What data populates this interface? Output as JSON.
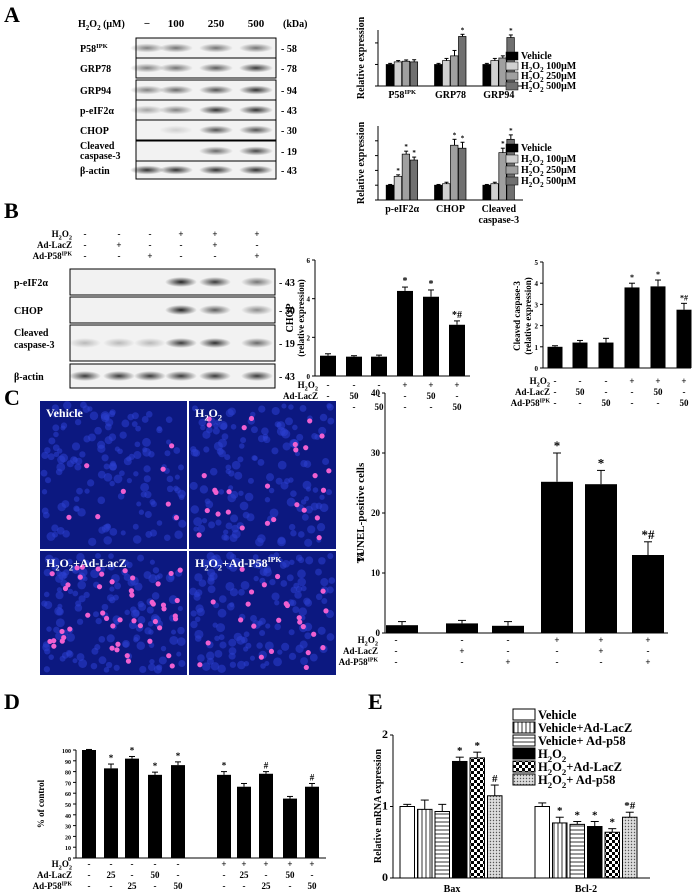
{
  "panel_letters": [
    "A",
    "B",
    "C",
    "D",
    "E"
  ],
  "panelA": {
    "conc_label": "H2O2 (μM)",
    "kda_label": "(kDa)",
    "conc_values": [
      "−",
      "100",
      "250",
      "500"
    ],
    "rows": [
      {
        "name": "P58IPK",
        "kda": "58"
      },
      {
        "name": "GRP78",
        "kda": "78"
      },
      {
        "name": "GRP94",
        "kda": "94"
      },
      {
        "name": "p-eIF2α",
        "kda": "43"
      },
      {
        "name": "CHOP",
        "kda": "30"
      },
      {
        "name": "Cleaved caspase-3",
        "kda": "19"
      },
      {
        "name": "β-actin",
        "kda": "43"
      }
    ],
    "legend": [
      "Vehicle",
      "H2O2 100μM",
      "H2O2 250μM",
      "H2O2 500μM"
    ],
    "legend_colors": [
      "#000000",
      "#d0d0d0",
      "#a0a0a0",
      "#707070"
    ]
  },
  "panelB": {
    "blot_conditions": [
      {
        "label": "H2O2",
        "values": [
          "-",
          "-",
          "-",
          "+",
          "+",
          "+"
        ]
      },
      {
        "label": "Ad-LacZ",
        "values": [
          "-",
          "+",
          "-",
          "-",
          "+",
          "-"
        ]
      },
      {
        "label": "Ad-P58IPK",
        "values": [
          "-",
          "-",
          "+",
          "-",
          "-",
          "+"
        ]
      }
    ],
    "rows": [
      {
        "name": "p-eIF2α",
        "kda": "43"
      },
      {
        "name": "CHOP",
        "kda": "30"
      },
      {
        "name": "Cleaved caspase-3",
        "kda": "19"
      },
      {
        "name": "β-actin",
        "kda": "43"
      }
    ],
    "chart_conditions": [
      {
        "label": "H2O2",
        "values": [
          "-",
          "-",
          "-",
          "+",
          "+",
          "+"
        ]
      },
      {
        "label": "Ad-LacZ",
        "values": [
          "-",
          "50",
          "-",
          "-",
          "50",
          "-"
        ]
      },
      {
        "label": "Ad-P58IPK",
        "values": [
          "-",
          "-",
          "50",
          "-",
          "-",
          "50"
        ]
      }
    ]
  },
  "panelC": {
    "images": [
      "Vehicle",
      "H2O2",
      "H2O2+Ad-LacZ",
      "H2O2+Ad-P58IPK"
    ],
    "conditions": [
      {
        "label": "H2O2",
        "values": [
          "-",
          "-",
          "-",
          "+",
          "+",
          "+"
        ]
      },
      {
        "label": "Ad-LacZ",
        "values": [
          "-",
          "+",
          "-",
          "-",
          "+",
          "-"
        ]
      },
      {
        "label": "Ad-P58IPK",
        "values": [
          "-",
          "-",
          "+",
          "-",
          "-",
          "+"
        ]
      }
    ]
  },
  "panelD": {
    "conditions": [
      {
        "label": "H2O2",
        "values": [
          "-",
          "-",
          "-",
          "-",
          "-",
          "+",
          "+",
          "+",
          "+",
          "+"
        ]
      },
      {
        "label": "Ad-LacZ",
        "values": [
          "-",
          "25",
          "-",
          "50",
          "-",
          "-",
          "25",
          "-",
          "50",
          "-"
        ]
      },
      {
        "label": "Ad-P58IPK",
        "values": [
          "-",
          "-",
          "25",
          "-",
          "50",
          "-",
          "-",
          "25",
          "-",
          "50"
        ]
      }
    ]
  },
  "panelE": {
    "legend": [
      "Vehicle",
      "Vehicle+Ad-LacZ",
      "Vehicle+ Ad-p58",
      "H2O2",
      "H2O2+Ad-LacZ",
      "H2O2+ Ad-p58"
    ]
  },
  "chart_data": [
    {
      "id": "A-top",
      "type": "bar",
      "ylabel": "Relative expression",
      "categories": [
        "P58IPK",
        "GRP78",
        "GRP94"
      ],
      "ylim": [
        0,
        2.6
      ],
      "series": [
        {
          "name": "Vehicle",
          "values": [
            1.0,
            1.0,
            1.0
          ],
          "errors": [
            0.05,
            0.05,
            0.05
          ]
        },
        {
          "name": "H2O2 100μM",
          "values": [
            1.12,
            1.18,
            1.18
          ],
          "errors": [
            0.06,
            0.1,
            0.1
          ]
        },
        {
          "name": "H2O2 250μM",
          "values": [
            1.15,
            1.4,
            1.3
          ],
          "errors": [
            0.06,
            0.25,
            0.1
          ]
        },
        {
          "name": "H2O2 500μM",
          "values": [
            1.12,
            2.3,
            2.25
          ],
          "errors": [
            0.1,
            0.1,
            0.12
          ]
        }
      ],
      "annotations": [
        {
          "cat": 1,
          "series": 3,
          "text": "*"
        },
        {
          "cat": 2,
          "series": 3,
          "text": "*"
        }
      ]
    },
    {
      "id": "A-bottom",
      "type": "bar",
      "ylabel": "Relative expression",
      "categories": [
        "p-eIF2α",
        "CHOP",
        "Cleaved caspase-3"
      ],
      "ylim": [
        0,
        5
      ],
      "series": [
        {
          "name": "Vehicle",
          "values": [
            1.0,
            1.0,
            1.0
          ],
          "errors": [
            0.05,
            0.05,
            0.05
          ]
        },
        {
          "name": "H2O2 100μM",
          "values": [
            1.6,
            1.1,
            1.1
          ],
          "errors": [
            0.1,
            0.1,
            0.1
          ]
        },
        {
          "name": "H2O2 250μM",
          "values": [
            3.1,
            3.7,
            3.2
          ],
          "errors": [
            0.2,
            0.4,
            0.3
          ]
        },
        {
          "name": "H2O2 500μM",
          "values": [
            2.7,
            3.5,
            4.1
          ],
          "errors": [
            0.2,
            0.4,
            0.3
          ]
        }
      ],
      "annotations": [
        {
          "cat": 0,
          "series": 1,
          "text": "*"
        },
        {
          "cat": 0,
          "series": 2,
          "text": "*"
        },
        {
          "cat": 0,
          "series": 3,
          "text": "*"
        },
        {
          "cat": 1,
          "series": 2,
          "text": "*"
        },
        {
          "cat": 1,
          "series": 3,
          "text": "*"
        },
        {
          "cat": 2,
          "series": 2,
          "text": "*"
        },
        {
          "cat": 2,
          "series": 3,
          "text": "*"
        }
      ]
    },
    {
      "id": "B-chop",
      "type": "bar",
      "ylabel": "CHOP (relative expression)",
      "ylim": [
        0,
        6
      ],
      "yticks": [
        0,
        2,
        4,
        6
      ],
      "values": [
        1.05,
        1.0,
        1.0,
        4.4,
        4.1,
        2.65
      ],
      "errors": [
        0.1,
        0.05,
        0.08,
        0.2,
        0.35,
        0.2
      ],
      "annotations": [
        "",
        "",
        "",
        "*",
        "*",
        "*#"
      ]
    },
    {
      "id": "B-casp",
      "type": "bar",
      "ylabel": "Cleaved caspase-3 (relative expression)",
      "ylim": [
        0,
        5
      ],
      "yticks": [
        0,
        1,
        2,
        3,
        4,
        5
      ],
      "values": [
        1.0,
        1.2,
        1.2,
        3.8,
        3.85,
        2.75
      ],
      "errors": [
        0.05,
        0.1,
        0.2,
        0.2,
        0.3,
        0.3
      ],
      "annotations": [
        "",
        "",
        "",
        "*",
        "*",
        "*#"
      ]
    },
    {
      "id": "C",
      "type": "bar",
      "ylabel": "% TUNEL-positive cells",
      "ylim": [
        0,
        40
      ],
      "yticks": [
        0,
        10,
        20,
        30,
        40
      ],
      "values": [
        1.3,
        1.6,
        1.2,
        25.2,
        24.8,
        13.0
      ],
      "errors": [
        0.6,
        0.5,
        0.7,
        4.8,
        2.3,
        2.2
      ],
      "annotations": [
        "",
        "",
        "",
        "*",
        "*",
        "*#"
      ]
    },
    {
      "id": "D",
      "type": "bar",
      "ylabel": "% of control",
      "ylim": [
        0,
        100
      ],
      "yticks": [
        0,
        10,
        20,
        30,
        40,
        50,
        60,
        70,
        80,
        90,
        100
      ],
      "values": [
        100,
        83,
        92,
        77,
        86,
        77,
        66,
        78,
        55,
        66
      ],
      "errors": [
        0.5,
        4,
        2,
        2.5,
        3,
        3,
        3,
        2,
        2,
        3
      ],
      "annotations": [
        "",
        "*",
        "*",
        "*",
        "*",
        "*",
        "",
        "#",
        "",
        "#"
      ]
    },
    {
      "id": "E",
      "type": "bar",
      "ylabel": "Relative mRNA expression",
      "categories": [
        "Bax",
        "Bcl-2"
      ],
      "ylim": [
        0,
        2
      ],
      "yticks": [
        0,
        1,
        2
      ],
      "series": [
        {
          "name": "Vehicle",
          "values": [
            1.0,
            1.0
          ],
          "errors": [
            0.03,
            0.05
          ]
        },
        {
          "name": "Vehicle+Ad-LacZ",
          "values": [
            0.96,
            0.77
          ],
          "errors": [
            0.13,
            0.08
          ]
        },
        {
          "name": "Vehicle+ Ad-p58",
          "values": [
            0.93,
            0.75
          ],
          "errors": [
            0.1,
            0.04
          ]
        },
        {
          "name": "H2O2",
          "values": [
            1.63,
            0.72
          ],
          "errors": [
            0.06,
            0.07
          ]
        },
        {
          "name": "H2O2+Ad-LacZ",
          "values": [
            1.68,
            0.64
          ],
          "errors": [
            0.08,
            0.05
          ]
        },
        {
          "name": "H2O2+ Ad-p58",
          "values": [
            1.15,
            0.85
          ],
          "errors": [
            0.15,
            0.07
          ]
        }
      ],
      "annotations": [
        [
          "",
          "",
          "",
          "*",
          "*",
          "#"
        ],
        [
          "",
          "*",
          "*",
          "*",
          "*",
          "*#"
        ]
      ]
    }
  ]
}
